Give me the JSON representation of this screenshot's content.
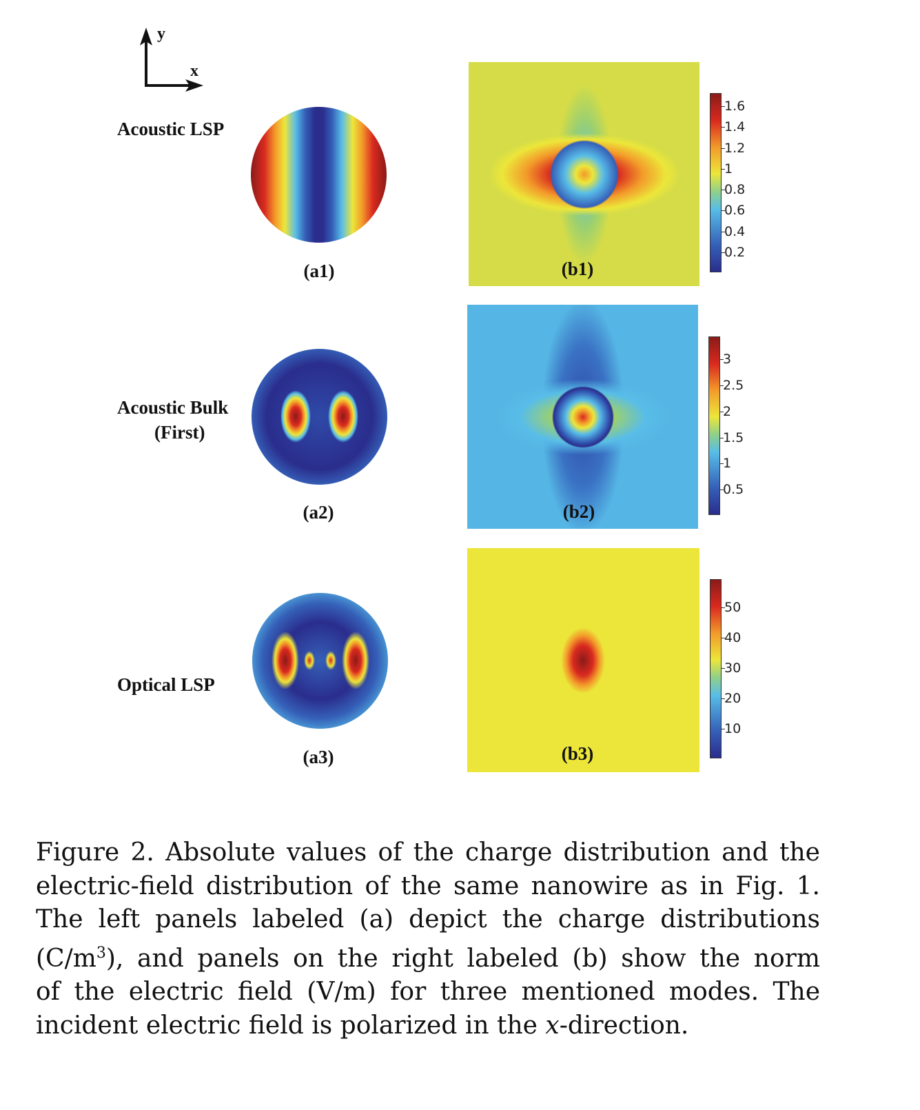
{
  "axes_icon": {
    "x": "x",
    "y": "y"
  },
  "rows": [
    {
      "mode": "Acoustic LSP",
      "a_label": "(a1)",
      "b_label": "(b1)",
      "colorbar": {
        "ticks": [
          "1.6",
          "1.4",
          "1.2",
          "1",
          "0.8",
          "0.6",
          "0.4",
          "0.2"
        ],
        "tick_values": [
          1.6,
          1.4,
          1.2,
          1.0,
          0.8,
          0.6,
          0.4,
          0.2
        ],
        "range": [
          0,
          1.72
        ]
      }
    },
    {
      "mode": "Acoustic Bulk",
      "mode2": "(First)",
      "a_label": "(a2)",
      "b_label": "(b2)",
      "colorbar": {
        "ticks": [
          "3",
          "2.5",
          "2",
          "1.5",
          "1",
          "0.5"
        ],
        "tick_values": [
          3,
          2.5,
          2,
          1.5,
          1,
          0.5
        ],
        "range": [
          0,
          3.43
        ]
      }
    },
    {
      "mode": "Optical LSP",
      "a_label": "(a3)",
      "b_label": "(b3)",
      "colorbar": {
        "ticks": [
          "50",
          "40",
          "30",
          "20",
          "10"
        ],
        "tick_values": [
          50,
          40,
          30,
          20,
          10
        ],
        "range": [
          0,
          59
        ]
      }
    }
  ],
  "caption": {
    "l1": "Figure 2. Absolute values of the charge distribution and the",
    "l2": "electric-field distribution of the same nanowire as in Fig. 1.",
    "l3": "The left panels labeled (a) depict the charge distributions",
    "l4a": "(C/m",
    "l4sup": "3",
    "l4b": "), and panels on the right labeled (b) show the norm",
    "l5": "of the electric field (V/m) for three mentioned modes. The",
    "l6a": "incident electric field is polarized in the ",
    "l6x": "x",
    "l6b": "-direction."
  },
  "colors": {
    "dark_blue": "#2a2d8c",
    "blue": "#3560b8",
    "cyan": "#58bde8",
    "yellow": "#ece63a",
    "orange": "#f39a2a",
    "red": "#d9291f",
    "dark_red": "#8a1b18"
  }
}
